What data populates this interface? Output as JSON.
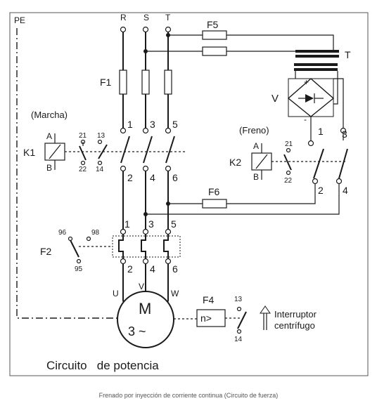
{
  "labels": {
    "pe": "PE",
    "phase_r": "R",
    "phase_s": "S",
    "phase_t": "T",
    "fuse_f1": "F1",
    "fuse_f5": "F5",
    "fuse_f6": "F6",
    "transformer": "T",
    "rectifier": "V",
    "plus": "+",
    "minus": "-",
    "marcha": "(Marcha)",
    "freno": "(Freno)",
    "k1": "K1",
    "k2": "K2",
    "coil_a": "A",
    "coil_b": "B",
    "relay_f2": "F2",
    "relay_f4": "F4",
    "f4_box": "n>",
    "motor": "M",
    "motor_phase": "3 ~",
    "motor_u": "U",
    "motor_v": "V",
    "motor_w": "W",
    "interruptor_line1": "Interruptor",
    "interruptor_line2": "centrífugo",
    "n1": "1",
    "n2": "2",
    "n3": "3",
    "n4": "4",
    "n5": "5",
    "n6": "6",
    "n13": "13",
    "n14": "14",
    "n21": "21",
    "n22": "22",
    "n95": "95",
    "n96": "96",
    "n98": "98"
  },
  "title": "Circuito   de potencia",
  "caption": "Frenado por inyección de corriente continua (Circuito de fuerza)"
}
